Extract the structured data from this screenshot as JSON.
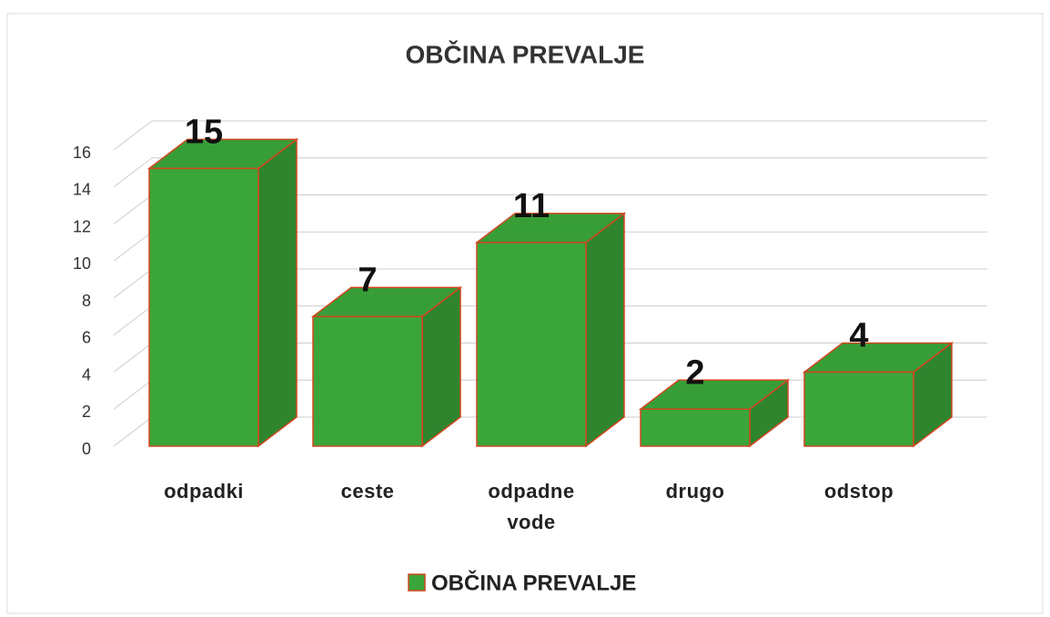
{
  "chart_data": {
    "type": "bar3d",
    "title": "OBČINA PREVALJE",
    "categories": [
      "odpadki",
      "ceste",
      "odpadne vode",
      "drugo",
      "odstop"
    ],
    "series": [
      {
        "name": "OBČINA PREVALJE",
        "color": "#3aa63a",
        "values": [
          15,
          7,
          11,
          2,
          4
        ]
      }
    ],
    "ylim": [
      0,
      16
    ],
    "yticks": [
      0,
      2,
      4,
      6,
      8,
      10,
      12,
      14,
      16
    ],
    "grid": true,
    "legend": "bottom"
  }
}
